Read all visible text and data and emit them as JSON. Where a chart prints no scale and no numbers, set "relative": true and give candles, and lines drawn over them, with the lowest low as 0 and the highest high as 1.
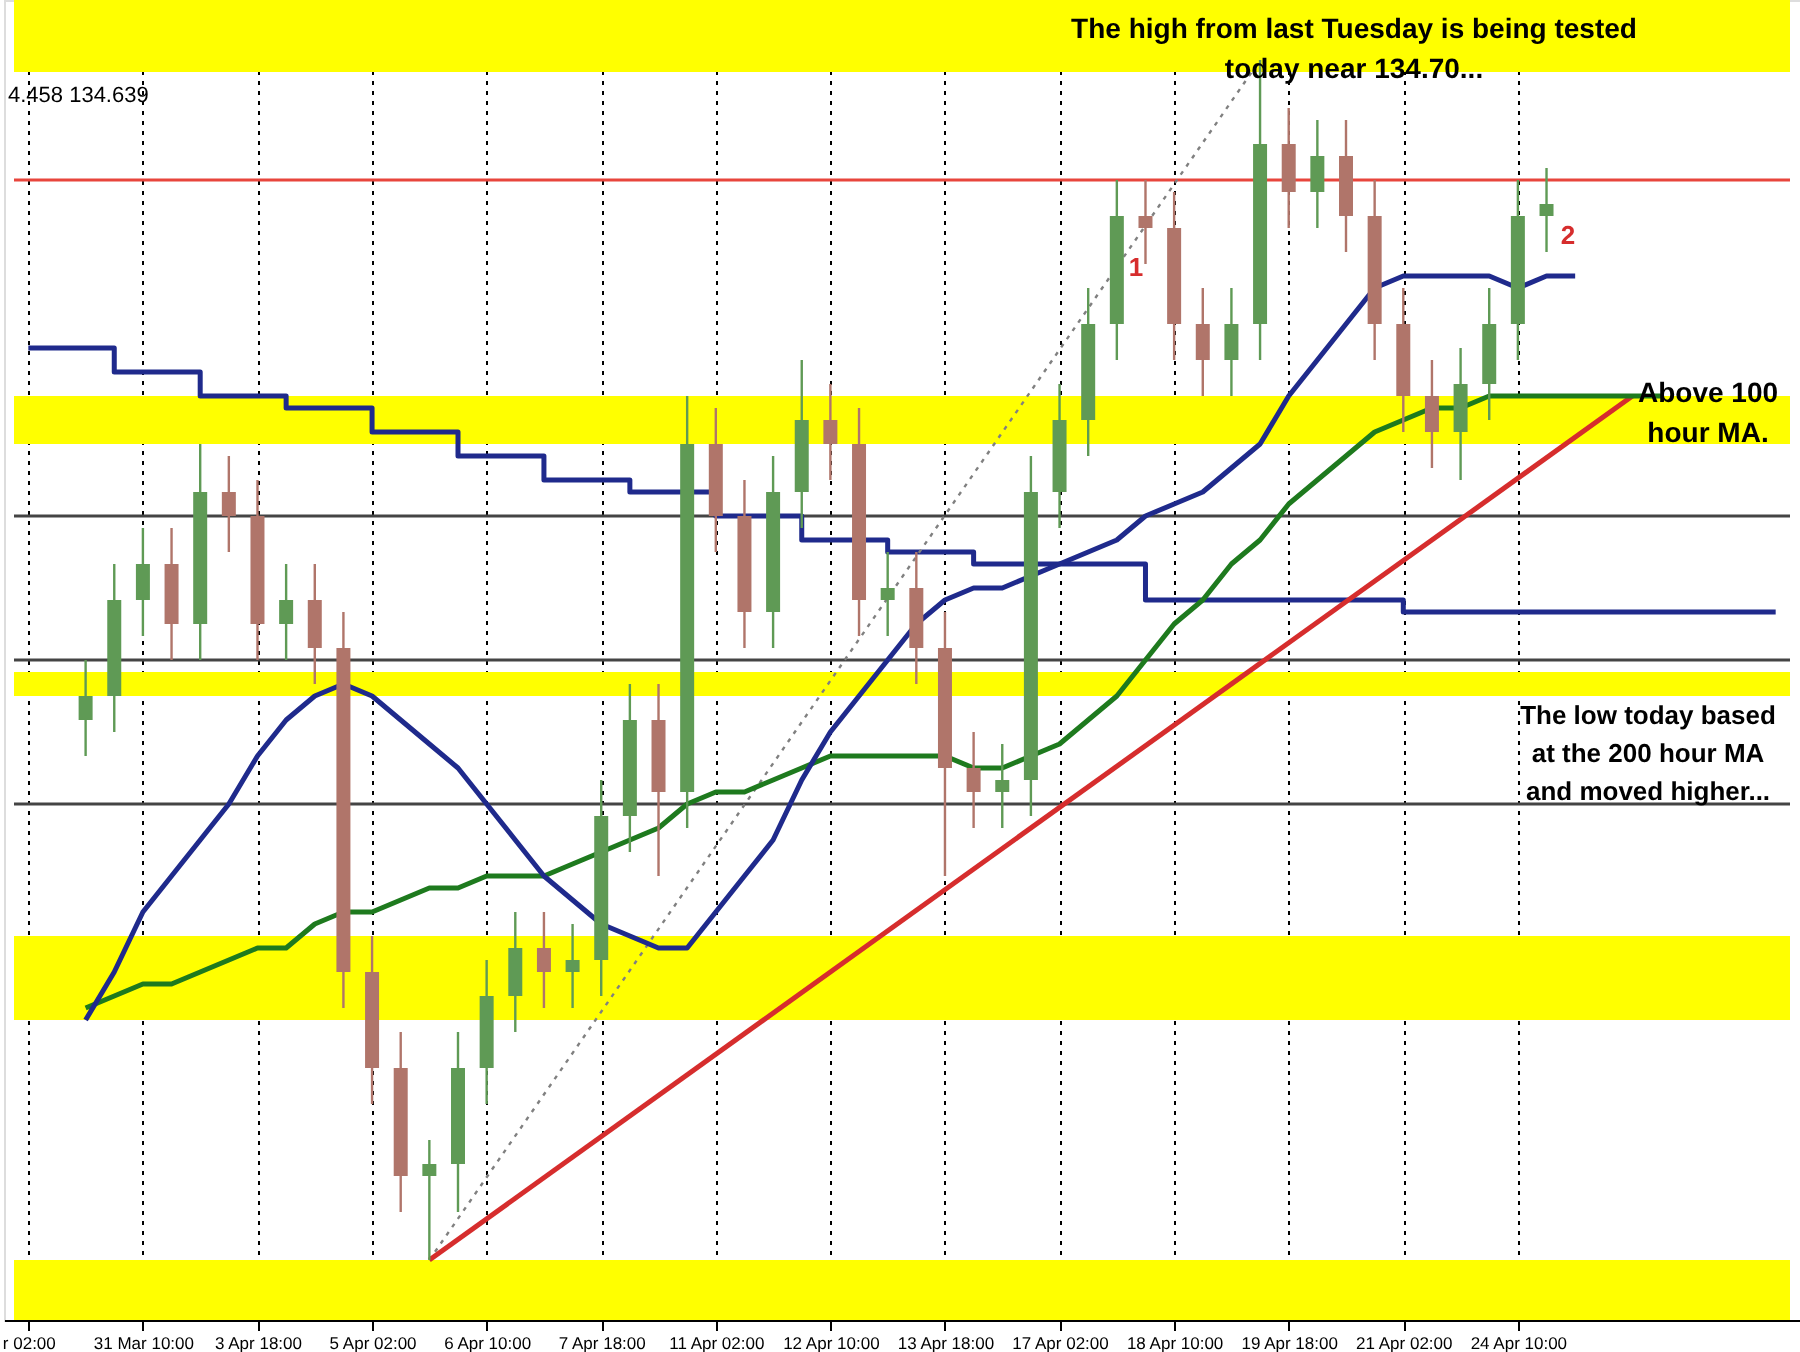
{
  "chart_data": {
    "type": "candlestick",
    "relative": true,
    "grid": "x",
    "categories": [
      "r 02:00",
      null,
      null,
      null,
      "31 Mar 10:00",
      null,
      null,
      null,
      "3 Apr 18:00",
      null,
      null,
      null,
      "5 Apr 02:00",
      null,
      null,
      null,
      "6 Apr 10:00",
      null,
      null,
      null,
      "7 Apr 18:00",
      null,
      null,
      null,
      "11 Apr 02:00",
      null,
      null,
      null,
      "12 Apr 10:00",
      null,
      null,
      null,
      "13 Apr 18:00",
      null,
      null,
      null,
      "17 Apr 02:00",
      null,
      null,
      null,
      "18 Apr 10:00",
      null,
      null,
      null,
      "19 Apr 18:00",
      null,
      null,
      null,
      "21 Apr 02:00",
      null,
      null,
      null,
      "24 Apr 10:00",
      null,
      null,
      null,
      null,
      null,
      null,
      null,
      null,
      null
    ],
    "ohlc": [
      null,
      null,
      [
        0.45,
        0.5,
        0.42,
        0.47
      ],
      [
        0.47,
        0.58,
        0.44,
        0.55
      ],
      [
        0.55,
        0.61,
        0.52,
        0.58
      ],
      [
        0.58,
        0.61,
        0.5,
        0.53
      ],
      [
        0.53,
        0.68,
        0.5,
        0.64
      ],
      [
        0.64,
        0.67,
        0.59,
        0.62
      ],
      [
        0.62,
        0.65,
        0.5,
        0.53
      ],
      [
        0.53,
        0.58,
        0.5,
        0.55
      ],
      [
        0.55,
        0.58,
        0.48,
        0.51
      ],
      [
        0.51,
        0.54,
        0.21,
        0.24
      ],
      [
        0.24,
        0.27,
        0.13,
        0.16
      ],
      [
        0.16,
        0.19,
        0.04,
        0.07
      ],
      [
        0.07,
        0.1,
        0.0,
        0.08
      ],
      [
        0.08,
        0.19,
        0.04,
        0.16
      ],
      [
        0.16,
        0.25,
        0.13,
        0.22
      ],
      [
        0.22,
        0.29,
        0.19,
        0.26
      ],
      [
        0.26,
        0.29,
        0.21,
        0.24
      ],
      [
        0.24,
        0.28,
        0.21,
        0.25
      ],
      [
        0.25,
        0.4,
        0.22,
        0.37
      ],
      [
        0.37,
        0.48,
        0.34,
        0.45
      ],
      [
        0.45,
        0.48,
        0.32,
        0.39
      ],
      [
        0.39,
        0.72,
        0.36,
        0.68
      ],
      [
        0.68,
        0.71,
        0.59,
        0.62
      ],
      [
        0.62,
        0.65,
        0.51,
        0.54
      ],
      [
        0.54,
        0.67,
        0.51,
        0.64
      ],
      [
        0.64,
        0.75,
        0.61,
        0.7
      ],
      [
        0.7,
        0.73,
        0.65,
        0.68
      ],
      [
        0.68,
        0.71,
        0.52,
        0.55
      ],
      [
        0.55,
        0.59,
        0.52,
        0.56
      ],
      [
        0.56,
        0.59,
        0.48,
        0.51
      ],
      [
        0.51,
        0.54,
        0.32,
        0.41
      ],
      [
        0.41,
        0.44,
        0.36,
        0.39
      ],
      [
        0.39,
        0.43,
        0.36,
        0.4
      ],
      [
        0.4,
        0.67,
        0.37,
        0.64
      ],
      [
        0.64,
        0.73,
        0.61,
        0.7
      ],
      [
        0.7,
        0.81,
        0.67,
        0.78
      ],
      [
        0.78,
        0.9,
        0.75,
        0.87
      ],
      [
        0.87,
        0.9,
        0.83,
        0.86
      ],
      [
        0.86,
        0.89,
        0.75,
        0.78
      ],
      [
        0.78,
        0.81,
        0.72,
        0.75
      ],
      [
        0.75,
        0.81,
        0.72,
        0.78
      ],
      [
        0.78,
        1.0,
        0.75,
        0.93
      ],
      [
        0.93,
        0.96,
        0.86,
        0.89
      ],
      [
        0.89,
        0.95,
        0.86,
        0.92
      ],
      [
        0.92,
        0.95,
        0.84,
        0.87
      ],
      [
        0.87,
        0.9,
        0.75,
        0.78
      ],
      [
        0.78,
        0.81,
        0.69,
        0.72
      ],
      [
        0.72,
        0.75,
        0.66,
        0.69
      ],
      [
        0.69,
        0.76,
        0.65,
        0.73
      ],
      [
        0.73,
        0.81,
        0.7,
        0.78
      ],
      [
        0.78,
        0.9,
        0.75,
        0.87
      ],
      [
        0.87,
        0.91,
        0.84,
        0.88
      ],
      null,
      null,
      null,
      null,
      null,
      null,
      null,
      null
    ],
    "series": [
      {
        "type": "step",
        "color": "#1f2a8c",
        "values": [
          0.76,
          0.76,
          0.76,
          0.74,
          0.74,
          0.74,
          0.72,
          0.72,
          0.72,
          0.71,
          0.71,
          0.71,
          0.69,
          0.69,
          0.69,
          0.67,
          0.67,
          0.67,
          0.65,
          0.65,
          0.65,
          0.64,
          0.64,
          0.64,
          0.62,
          0.62,
          0.62,
          0.6,
          0.6,
          0.6,
          0.59,
          0.59,
          0.59,
          0.58,
          0.58,
          0.58,
          0.58,
          0.58,
          0.58,
          0.55,
          0.55,
          0.55,
          0.55,
          0.55,
          0.55,
          0.55,
          0.55,
          0.55,
          0.54,
          0.54,
          0.54,
          0.54,
          0.54,
          0.54,
          0.54,
          0.54,
          0.54,
          0.54,
          0.54,
          0.54,
          0.54,
          0.54
        ]
      },
      {
        "type": "line",
        "color": "#808080",
        "line_style": "dotted",
        "values": [
          null,
          null,
          null,
          null,
          null,
          null,
          null,
          null,
          null,
          null,
          null,
          null,
          null,
          null,
          0.0,
          null,
          null,
          null,
          null,
          null,
          null,
          null,
          null,
          null,
          null,
          null,
          null,
          null,
          null,
          null,
          null,
          null,
          null,
          null,
          null,
          null,
          null,
          null,
          null,
          null,
          null,
          null,
          null,
          1.0,
          null,
          null,
          null,
          null,
          null,
          null,
          null,
          null,
          null,
          null,
          null,
          null,
          null,
          null,
          null,
          null,
          null,
          null
        ]
      },
      {
        "type": "line",
        "color": "#d62d2d",
        "values": [
          null,
          null,
          null,
          null,
          null,
          null,
          null,
          null,
          null,
          null,
          null,
          null,
          null,
          null,
          0.0,
          null,
          null,
          null,
          null,
          null,
          null,
          null,
          null,
          null,
          null,
          null,
          null,
          null,
          null,
          null,
          null,
          null,
          null,
          null,
          null,
          null,
          null,
          null,
          null,
          null,
          null,
          null,
          null,
          null,
          null,
          null,
          null,
          null,
          null,
          null,
          null,
          null,
          null,
          null,
          null,
          null,
          0.72,
          null,
          null,
          null,
          null,
          null
        ]
      },
      {
        "type": "line",
        "color": "#1e7a1e",
        "values": [
          null,
          null,
          0.21,
          0.22,
          0.23,
          0.23,
          0.24,
          0.25,
          0.26,
          0.26,
          0.28,
          0.29,
          0.29,
          0.3,
          0.31,
          0.31,
          0.32,
          0.32,
          0.32,
          0.33,
          0.34,
          0.35,
          0.36,
          0.38,
          0.39,
          0.39,
          0.4,
          0.41,
          0.42,
          0.42,
          0.42,
          0.42,
          0.42,
          0.41,
          0.41,
          0.42,
          0.43,
          0.45,
          0.47,
          0.5,
          0.53,
          0.55,
          0.58,
          0.6,
          0.63,
          0.65,
          0.67,
          0.69,
          0.7,
          0.71,
          0.71,
          0.72,
          0.72,
          0.72,
          0.72,
          0.72,
          0.72,
          0.72,
          null,
          null,
          null,
          null
        ]
      },
      {
        "type": "line",
        "color": "#1f2a8c",
        "values": [
          null,
          null,
          0.2,
          0.24,
          0.29,
          0.32,
          0.35,
          0.38,
          0.42,
          0.45,
          0.47,
          0.48,
          0.47,
          0.45,
          0.43,
          0.41,
          0.38,
          0.35,
          0.32,
          0.3,
          0.28,
          0.27,
          0.26,
          0.26,
          0.29,
          0.32,
          0.35,
          0.4,
          0.44,
          0.47,
          0.5,
          0.53,
          0.55,
          0.56,
          0.56,
          0.57,
          0.58,
          0.59,
          0.6,
          0.62,
          0.63,
          0.64,
          0.66,
          0.68,
          0.72,
          0.75,
          0.78,
          0.81,
          0.82,
          0.82,
          0.82,
          0.82,
          0.81,
          0.82,
          0.82,
          null,
          null,
          null,
          null,
          null,
          null,
          null
        ]
      }
    ],
    "bands": [
      {
        "axis": "y",
        "from": 0.99,
        "to": 1.05,
        "color": "#ffff00"
      },
      {
        "axis": "y",
        "from": 0.68,
        "to": 0.72,
        "color": "#ffff00"
      },
      {
        "axis": "y",
        "from": 0.47,
        "to": 0.49,
        "color": "#ffff00"
      },
      {
        "axis": "y",
        "from": 0.2,
        "to": 0.27,
        "color": "#ffff00"
      },
      {
        "axis": "y",
        "from": -0.05,
        "to": 0.0,
        "color": "#ffff00"
      }
    ],
    "ref_lines": [
      {
        "axis": "y",
        "value": 0.9,
        "color": "#e8453c"
      },
      {
        "axis": "y",
        "value": 0.62,
        "color": "#444444"
      },
      {
        "axis": "y",
        "value": 0.5,
        "color": "#444444"
      },
      {
        "axis": "y",
        "value": 0.38,
        "color": "#444444"
      }
    ],
    "annotations": [
      "The high from last Tuesday is being tested today near 134.70...",
      "Above 100 hour MA.",
      "The low today based at the 200 hour MA and moved higher...",
      "4.458 134.639",
      "1",
      "2"
    ]
  }
}
